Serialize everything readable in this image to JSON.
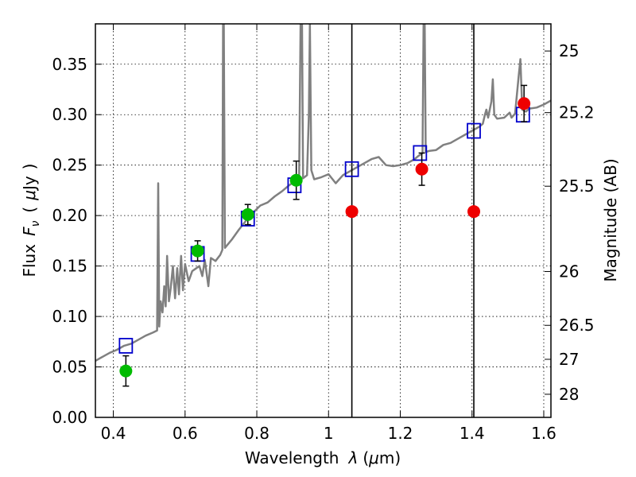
{
  "chart_data": {
    "type": "scatter",
    "title": "",
    "xlabel": {
      "text": "Wavelength",
      "symbol": "λ",
      "unit_open": "(",
      "unit_mu": "μ",
      "unit_rest": "m)"
    },
    "ylabel": {
      "text": "Flux",
      "symbol_main": "F",
      "symbol_sub": "ν",
      "unit_open": "(",
      "unit_mu": "μ",
      "unit_rest": "Jy",
      "unit_close": ")"
    },
    "y2label": "Magnitude (AB)",
    "xlim": [
      0.35,
      1.62
    ],
    "ylim": [
      0.0,
      0.39
    ],
    "grid": true,
    "x_ticks": [
      {
        "value": 0.4,
        "label": "0.4"
      },
      {
        "value": 0.6,
        "label": "0.6"
      },
      {
        "value": 0.8,
        "label": "0.8"
      },
      {
        "value": 1.0,
        "label": "1"
      },
      {
        "value": 1.2,
        "label": "1.2"
      },
      {
        "value": 1.4,
        "label": "1.4"
      },
      {
        "value": 1.6,
        "label": "1.6"
      }
    ],
    "y_ticks": [
      {
        "value": 0.0,
        "label": "0.00"
      },
      {
        "value": 0.05,
        "label": "0.05"
      },
      {
        "value": 0.1,
        "label": "0.10"
      },
      {
        "value": 0.15,
        "label": "0.15"
      },
      {
        "value": 0.2,
        "label": "0.20"
      },
      {
        "value": 0.25,
        "label": "0.25"
      },
      {
        "value": 0.3,
        "label": "0.30"
      },
      {
        "value": 0.35,
        "label": "0.35"
      }
    ],
    "y2_ticks": [
      {
        "label": "25",
        "mag": 25.0
      },
      {
        "label": "25.2",
        "mag": 25.2
      },
      {
        "label": "25.5",
        "mag": 25.5
      },
      {
        "label": "26",
        "mag": 26.0
      },
      {
        "label": "26.5",
        "mag": 26.5
      },
      {
        "label": "27",
        "mag": 27.0
      },
      {
        "label": "28",
        "mag": 28.0
      }
    ],
    "vertical_lines": [
      1.065,
      1.405
    ],
    "series": [
      {
        "kind": "model_spectrum",
        "color": "#808080",
        "points": [
          [
            0.35,
            0.056
          ],
          [
            0.37,
            0.06
          ],
          [
            0.39,
            0.064
          ],
          [
            0.41,
            0.067
          ],
          [
            0.43,
            0.071
          ],
          [
            0.45,
            0.073
          ],
          [
            0.47,
            0.077
          ],
          [
            0.49,
            0.081
          ],
          [
            0.51,
            0.084
          ],
          [
            0.522,
            0.086
          ],
          [
            0.525,
            0.232
          ],
          [
            0.528,
            0.09
          ],
          [
            0.532,
            0.115
          ],
          [
            0.537,
            0.104
          ],
          [
            0.542,
            0.13
          ],
          [
            0.546,
            0.11
          ],
          [
            0.55,
            0.16
          ],
          [
            0.555,
            0.115
          ],
          [
            0.56,
            0.128
          ],
          [
            0.566,
            0.15
          ],
          [
            0.572,
            0.118
          ],
          [
            0.578,
            0.148
          ],
          [
            0.583,
            0.122
          ],
          [
            0.589,
            0.16
          ],
          [
            0.594,
            0.126
          ],
          [
            0.6,
            0.152
          ],
          [
            0.61,
            0.135
          ],
          [
            0.62,
            0.145
          ],
          [
            0.632,
            0.148
          ],
          [
            0.64,
            0.15
          ],
          [
            0.648,
            0.14
          ],
          [
            0.655,
            0.156
          ],
          [
            0.665,
            0.13
          ],
          [
            0.672,
            0.158
          ],
          [
            0.685,
            0.155
          ],
          [
            0.698,
            0.161
          ],
          [
            0.704,
            0.166
          ],
          [
            0.706,
            0.39
          ],
          [
            0.708,
            0.39
          ],
          [
            0.711,
            0.168
          ],
          [
            0.73,
            0.176
          ],
          [
            0.75,
            0.186
          ],
          [
            0.77,
            0.195
          ],
          [
            0.79,
            0.203
          ],
          [
            0.81,
            0.21
          ],
          [
            0.83,
            0.213
          ],
          [
            0.85,
            0.219
          ],
          [
            0.87,
            0.224
          ],
          [
            0.89,
            0.23
          ],
          [
            0.91,
            0.235
          ],
          [
            0.918,
            0.24
          ],
          [
            0.922,
            0.39
          ],
          [
            0.926,
            0.39
          ],
          [
            0.929,
            0.237
          ],
          [
            0.94,
            0.24
          ],
          [
            0.945,
            0.3
          ],
          [
            0.948,
            0.39
          ],
          [
            0.952,
            0.245
          ],
          [
            0.96,
            0.236
          ],
          [
            0.98,
            0.238
          ],
          [
            1.0,
            0.241
          ],
          [
            1.02,
            0.232
          ],
          [
            1.04,
            0.24
          ],
          [
            1.06,
            0.244
          ],
          [
            1.08,
            0.248
          ],
          [
            1.1,
            0.252
          ],
          [
            1.12,
            0.256
          ],
          [
            1.14,
            0.258
          ],
          [
            1.16,
            0.25
          ],
          [
            1.18,
            0.249
          ],
          [
            1.2,
            0.25
          ],
          [
            1.22,
            0.252
          ],
          [
            1.24,
            0.256
          ],
          [
            1.25,
            0.259
          ],
          [
            1.262,
            0.262
          ],
          [
            1.265,
            0.39
          ],
          [
            1.268,
            0.39
          ],
          [
            1.271,
            0.263
          ],
          [
            1.28,
            0.264
          ],
          [
            1.3,
            0.265
          ],
          [
            1.32,
            0.27
          ],
          [
            1.34,
            0.272
          ],
          [
            1.36,
            0.276
          ],
          [
            1.38,
            0.28
          ],
          [
            1.4,
            0.284
          ],
          [
            1.42,
            0.288
          ],
          [
            1.43,
            0.291
          ],
          [
            1.436,
            0.3
          ],
          [
            1.44,
            0.305
          ],
          [
            1.445,
            0.297
          ],
          [
            1.454,
            0.313
          ],
          [
            1.458,
            0.335
          ],
          [
            1.462,
            0.3
          ],
          [
            1.47,
            0.296
          ],
          [
            1.49,
            0.297
          ],
          [
            1.505,
            0.302
          ],
          [
            1.51,
            0.297
          ],
          [
            1.52,
            0.301
          ],
          [
            1.53,
            0.338
          ],
          [
            1.535,
            0.355
          ],
          [
            1.54,
            0.305
          ],
          [
            1.55,
            0.303
          ],
          [
            1.56,
            0.306
          ],
          [
            1.58,
            0.307
          ],
          [
            1.6,
            0.31
          ],
          [
            1.62,
            0.314
          ]
        ]
      },
      {
        "kind": "model_photometry",
        "marker": "open-square",
        "color": "#0000cc",
        "points": [
          [
            0.435,
            0.071
          ],
          [
            0.635,
            0.162
          ],
          [
            0.775,
            0.197
          ],
          [
            0.905,
            0.23
          ],
          [
            1.065,
            0.246
          ],
          [
            1.255,
            0.262
          ],
          [
            1.405,
            0.284
          ],
          [
            1.542,
            0.3
          ]
        ]
      },
      {
        "kind": "detections",
        "marker": "filled-circle",
        "color": "#00bb00",
        "points": [
          {
            "x": 0.435,
            "y": 0.046,
            "err": 0.015
          },
          {
            "x": 0.635,
            "y": 0.165,
            "err": 0.01
          },
          {
            "x": 0.775,
            "y": 0.201,
            "err": 0.01
          },
          {
            "x": 0.91,
            "y": 0.235,
            "err": 0.019
          }
        ]
      },
      {
        "kind": "upper_limits_and_ir",
        "marker": "filled-circle",
        "color": "#ee0000",
        "points": [
          {
            "x": 1.065,
            "y": 0.204
          },
          {
            "x": 1.26,
            "y": 0.246,
            "err": 0.016
          },
          {
            "x": 1.405,
            "y": 0.204
          },
          {
            "x": 1.545,
            "y": 0.311,
            "err": 0.018
          }
        ]
      }
    ]
  }
}
